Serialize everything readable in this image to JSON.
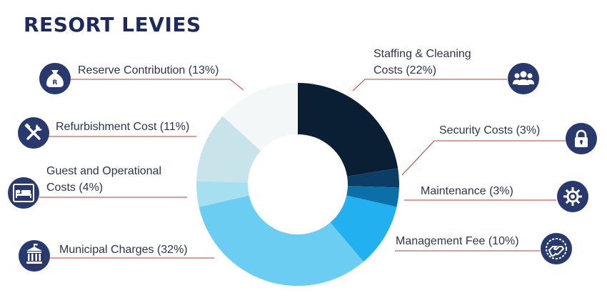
{
  "title": "RESORT LEVIES",
  "chart_data": {
    "type": "pie",
    "variant": "donut",
    "title": "RESORT LEVIES",
    "slices": [
      {
        "label_lines": [
          "Staffing & Cleaning",
          "Costs (22%)"
        ],
        "name": "Staffing & Cleaning Costs",
        "value": 22,
        "color": "#0a1f33",
        "icon": "people-icon"
      },
      {
        "label_lines": [
          "Security Costs (3%)"
        ],
        "name": "Security Costs",
        "value": 3,
        "color": "#0b3d66",
        "icon": "lock-icon"
      },
      {
        "label_lines": [
          "Maintenance (3%)"
        ],
        "name": "Maintenance",
        "value": 3,
        "color": "#0b6fa8",
        "icon": "gear-icon"
      },
      {
        "label_lines": [
          "Management Fee (10%)"
        ],
        "name": "Management Fee",
        "value": 10,
        "color": "#22b0f0",
        "icon": "handshake-icon"
      },
      {
        "label_lines": [
          "Municipal Charges (32%)"
        ],
        "name": "Municipal Charges",
        "value": 32,
        "color": "#6ccdf2",
        "icon": "bank-icon"
      },
      {
        "label_lines": [
          "Guest and Operational",
          "Costs (4%)"
        ],
        "name": "Guest and Operational Costs",
        "value": 4,
        "color": "#a6dff0",
        "icon": "bed-icon"
      },
      {
        "label_lines": [
          "Refurbishment Cost (11%)"
        ],
        "name": "Refurbishment Cost",
        "value": 11,
        "color": "#c8e3ea",
        "icon": "tools-icon"
      },
      {
        "label_lines": [
          "Reserve Contribution (13%)"
        ],
        "name": "Reserve Contribution",
        "value": 13,
        "color": "#f4f7f8",
        "icon": "money-bag-icon"
      }
    ],
    "unit": "%"
  },
  "colors": {
    "title": "#1f2a5c",
    "icon_bg": "#283a6d",
    "leader_line": "#c0392b",
    "label_text": "#2d3450"
  },
  "icon_letter": "R"
}
